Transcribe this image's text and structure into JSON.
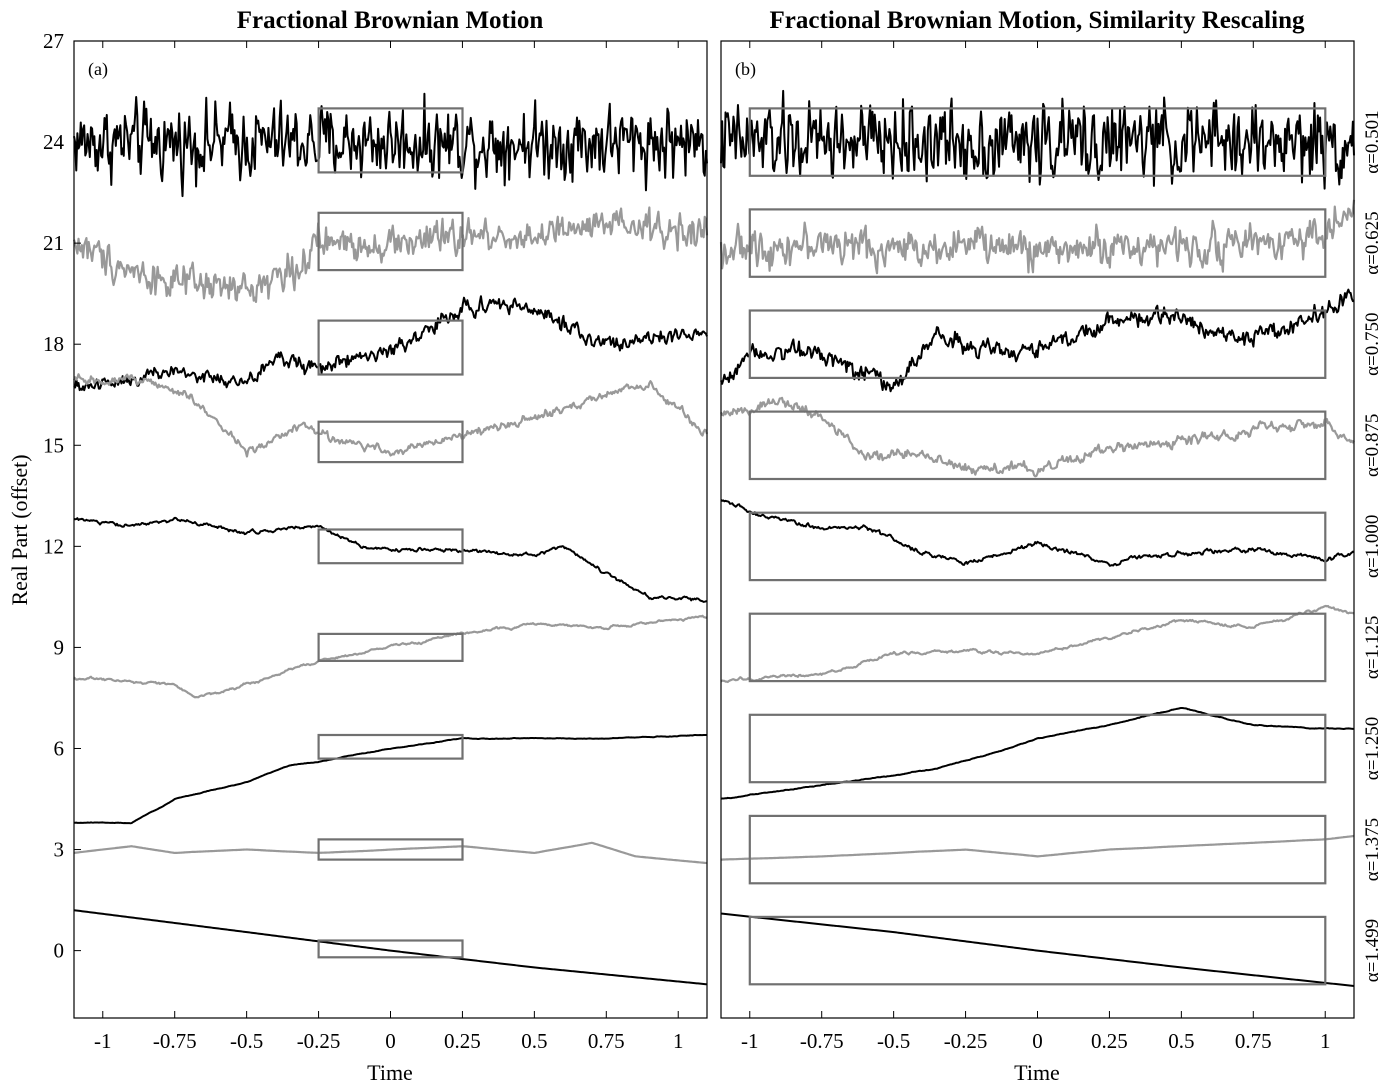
{
  "figure": {
    "ylabel": "Real Part (offset)",
    "alpha_labels": [
      "α=0.501",
      "α=0.625",
      "α=0.750",
      "α=0.875",
      "α=1.000",
      "α=1.125",
      "α=1.250",
      "α=1.375",
      "α=1.499"
    ]
  },
  "chart_data": [
    {
      "type": "line",
      "panel": "(a)",
      "title": "Fractional Brownian Motion",
      "xlabel": "Time",
      "ylabel": "Real Part (offset)",
      "xlim": [
        -1.1,
        1.1
      ],
      "ylim": [
        -2,
        27
      ],
      "xticks": [
        -1,
        -0.75,
        -0.5,
        -0.25,
        0,
        0.25,
        0.5,
        0.75,
        1
      ],
      "xtick_labels": [
        "-1",
        "-0.75",
        "-0.5",
        "-0.25",
        "0",
        "0.25",
        "0.5",
        "0.75",
        "1"
      ],
      "yticks": [
        0,
        3,
        6,
        9,
        12,
        15,
        18,
        21,
        24,
        27
      ],
      "ytick_labels": [
        "0",
        "3",
        "6",
        "9",
        "12",
        "15",
        "18",
        "21",
        "24",
        "27"
      ],
      "grid": false,
      "series": [
        {
          "alpha": 0.501,
          "color": "#000000",
          "x": [
            -1.1,
            -0.75,
            -0.5,
            -0.25,
            0,
            0.25,
            0.5,
            0.75,
            1.1
          ],
          "y": [
            24.0,
            24.0,
            24.0,
            24.0,
            24.0,
            24.0,
            24.0,
            24.0,
            24.0
          ],
          "noise": 0.75
        },
        {
          "alpha": 0.625,
          "color": "#999999",
          "x": [
            -1.1,
            -0.9,
            -0.75,
            -0.5,
            -0.3,
            -0.25,
            0,
            0.25,
            0.5,
            0.75,
            1.1
          ],
          "y": [
            21.0,
            20.2,
            19.8,
            19.6,
            20.4,
            21.0,
            21.0,
            21.2,
            21.2,
            21.5,
            21.3
          ],
          "noise": 0.4
        },
        {
          "alpha": 0.75,
          "color": "#000000",
          "x": [
            -1.1,
            -0.9,
            -0.75,
            -0.5,
            -0.4,
            -0.25,
            0,
            0.15,
            0.25,
            0.4,
            0.5,
            0.75,
            1.1
          ],
          "y": [
            16.7,
            17.0,
            17.2,
            16.8,
            17.6,
            17.3,
            17.8,
            18.5,
            19.1,
            19.2,
            19.0,
            18.0,
            18.3
          ],
          "noise": 0.22
        },
        {
          "alpha": 0.875,
          "color": "#999999",
          "x": [
            -1.1,
            -0.9,
            -0.7,
            -0.55,
            -0.5,
            -0.3,
            -0.2,
            0,
            0.25,
            0.5,
            0.75,
            0.9,
            1.1
          ],
          "y": [
            16.9,
            17.0,
            16.5,
            15.2,
            14.8,
            15.6,
            15.2,
            14.8,
            15.3,
            15.8,
            16.5,
            16.8,
            15.3
          ],
          "noise": 0.14
        },
        {
          "alpha": 1.0,
          "color": "#000000",
          "x": [
            -1.1,
            -0.9,
            -0.75,
            -0.5,
            -0.25,
            -0.1,
            0,
            0.25,
            0.5,
            0.6,
            0.75,
            0.9,
            1.1
          ],
          "y": [
            12.8,
            12.6,
            12.8,
            12.4,
            12.6,
            12.0,
            11.9,
            11.9,
            11.7,
            12.0,
            11.2,
            10.5,
            10.4
          ],
          "noise": 0.08
        },
        {
          "alpha": 1.125,
          "color": "#999999",
          "x": [
            -1.1,
            -0.75,
            -0.68,
            -0.5,
            -0.25,
            0,
            0.25,
            0.5,
            0.75,
            1.1
          ],
          "y": [
            8.1,
            7.9,
            7.5,
            7.9,
            8.6,
            9.0,
            9.4,
            9.7,
            9.6,
            9.9
          ],
          "noise": 0.05
        },
        {
          "alpha": 1.25,
          "color": "#000000",
          "x": [
            -1.1,
            -0.9,
            -0.75,
            -0.5,
            -0.35,
            -0.25,
            0,
            0.25,
            0.5,
            0.75,
            1.1
          ],
          "y": [
            3.8,
            3.8,
            4.5,
            5.0,
            5.5,
            5.6,
            6.0,
            6.3,
            6.3,
            6.3,
            6.4
          ],
          "noise": 0.03
        },
        {
          "alpha": 1.375,
          "color": "#999999",
          "x": [
            -1.1,
            -0.9,
            -0.75,
            -0.5,
            -0.25,
            0,
            0.25,
            0.5,
            0.7,
            0.85,
            1.1
          ],
          "y": [
            2.9,
            3.1,
            2.9,
            3.0,
            2.9,
            3.0,
            3.1,
            2.9,
            3.2,
            2.8,
            2.6
          ],
          "noise": 0.02
        },
        {
          "alpha": 1.499,
          "color": "#000000",
          "x": [
            -1.1,
            -0.5,
            0,
            0.5,
            1.1
          ],
          "y": [
            1.2,
            0.55,
            0.0,
            -0.5,
            -1.0
          ],
          "noise": 0.0
        }
      ],
      "boxes": [
        {
          "x": [
            -0.25,
            0.25
          ],
          "y": [
            23.1,
            25.0
          ]
        },
        {
          "x": [
            -0.25,
            0.25
          ],
          "y": [
            20.2,
            21.9
          ]
        },
        {
          "x": [
            -0.25,
            0.25
          ],
          "y": [
            17.1,
            18.7
          ]
        },
        {
          "x": [
            -0.25,
            0.25
          ],
          "y": [
            14.5,
            15.7
          ]
        },
        {
          "x": [
            -0.25,
            0.25
          ],
          "y": [
            11.5,
            12.5
          ]
        },
        {
          "x": [
            -0.25,
            0.25
          ],
          "y": [
            8.6,
            9.4
          ]
        },
        {
          "x": [
            -0.25,
            0.25
          ],
          "y": [
            5.7,
            6.4
          ]
        },
        {
          "x": [
            -0.25,
            0.25
          ],
          "y": [
            2.7,
            3.3
          ]
        },
        {
          "x": [
            -0.25,
            0.25
          ],
          "y": [
            -0.2,
            0.3
          ]
        }
      ]
    },
    {
      "type": "line",
      "panel": "(b)",
      "title": "Fractional Brownian Motion, Similarity Rescaling",
      "xlabel": "Time",
      "xlim": [
        -1.1,
        1.1
      ],
      "ylim": [
        -2,
        27
      ],
      "xticks": [
        -1,
        -0.75,
        -0.5,
        -0.25,
        0,
        0.25,
        0.5,
        0.75,
        1
      ],
      "xtick_labels": [
        "-1",
        "-0.75",
        "-0.5",
        "-0.25",
        "0",
        "0.25",
        "0.5",
        "0.75",
        "1"
      ],
      "grid": false,
      "series": [
        {
          "alpha": 0.501,
          "color": "#000000",
          "x": [
            -1.1,
            -0.5,
            0,
            0.5,
            1.1
          ],
          "y": [
            24.0,
            24.0,
            24.0,
            24.0,
            24.0
          ],
          "noise": 0.8
        },
        {
          "alpha": 0.625,
          "color": "#999999",
          "x": [
            -1.1,
            -0.75,
            -0.5,
            -0.25,
            0,
            0.25,
            0.5,
            0.75,
            1.0,
            1.1
          ],
          "y": [
            20.8,
            21.0,
            20.8,
            21.0,
            20.8,
            20.9,
            20.9,
            21.0,
            21.3,
            22.0
          ],
          "noise": 0.42
        },
        {
          "alpha": 0.75,
          "color": "#000000",
          "x": [
            -1.1,
            -1.0,
            -0.75,
            -0.5,
            -0.35,
            -0.2,
            0,
            0.25,
            0.5,
            0.75,
            0.9,
            1.1
          ],
          "y": [
            16.8,
            17.8,
            17.8,
            16.7,
            18.3,
            17.8,
            17.8,
            18.7,
            18.8,
            18.1,
            18.6,
            19.4
          ],
          "noise": 0.25
        },
        {
          "alpha": 0.875,
          "color": "#999999",
          "x": [
            -1.1,
            -0.9,
            -0.75,
            -0.6,
            -0.4,
            -0.25,
            0,
            0.25,
            0.5,
            0.75,
            1.0,
            1.1
          ],
          "y": [
            15.9,
            16.3,
            15.8,
            14.7,
            14.7,
            14.3,
            14.3,
            14.9,
            15.1,
            15.5,
            15.7,
            15.0
          ],
          "noise": 0.18
        },
        {
          "alpha": 1.0,
          "color": "#000000",
          "x": [
            -1.1,
            -1.0,
            -0.75,
            -0.6,
            -0.4,
            -0.25,
            0,
            0.25,
            0.5,
            0.75,
            1.0,
            1.1
          ],
          "y": [
            13.4,
            13.0,
            12.5,
            12.6,
            11.8,
            11.5,
            12.1,
            11.5,
            11.8,
            11.9,
            11.6,
            11.8
          ],
          "noise": 0.1
        },
        {
          "alpha": 1.125,
          "color": "#999999",
          "x": [
            -1.1,
            -0.75,
            -0.5,
            -0.25,
            0,
            0.25,
            0.5,
            0.75,
            1.0,
            1.1
          ],
          "y": [
            8.0,
            8.2,
            8.8,
            8.9,
            8.8,
            9.3,
            9.8,
            9.6,
            10.2,
            10.0
          ],
          "noise": 0.06
        },
        {
          "alpha": 1.25,
          "color": "#000000",
          "x": [
            -1.1,
            -0.75,
            -0.5,
            -0.35,
            -0.1,
            0,
            0.25,
            0.5,
            0.75,
            1.0,
            1.1
          ],
          "y": [
            4.5,
            4.9,
            5.2,
            5.4,
            6.0,
            6.3,
            6.7,
            7.2,
            6.7,
            6.6,
            6.6
          ],
          "noise": 0.04
        },
        {
          "alpha": 1.375,
          "color": "#999999",
          "x": [
            -1.1,
            -0.75,
            -0.5,
            -0.25,
            0,
            0.25,
            0.5,
            0.75,
            1.0,
            1.1
          ],
          "y": [
            2.7,
            2.8,
            2.9,
            3.0,
            2.8,
            3.0,
            3.1,
            3.2,
            3.3,
            3.4
          ],
          "noise": 0.02
        },
        {
          "alpha": 1.499,
          "color": "#000000",
          "x": [
            -1.1,
            -0.5,
            0,
            0.5,
            1.1
          ],
          "y": [
            1.1,
            0.55,
            0.0,
            -0.5,
            -1.05
          ],
          "noise": 0.0
        }
      ],
      "boxes": [
        {
          "x": [
            -1.0,
            1.0
          ],
          "y": [
            23.0,
            25.0
          ]
        },
        {
          "x": [
            -1.0,
            1.0
          ],
          "y": [
            20.0,
            22.0
          ]
        },
        {
          "x": [
            -1.0,
            1.0
          ],
          "y": [
            17.0,
            19.0
          ]
        },
        {
          "x": [
            -1.0,
            1.0
          ],
          "y": [
            14.0,
            16.0
          ]
        },
        {
          "x": [
            -1.0,
            1.0
          ],
          "y": [
            11.0,
            13.0
          ]
        },
        {
          "x": [
            -1.0,
            1.0
          ],
          "y": [
            8.0,
            10.0
          ]
        },
        {
          "x": [
            -1.0,
            1.0
          ],
          "y": [
            5.0,
            7.0
          ]
        },
        {
          "x": [
            -1.0,
            1.0
          ],
          "y": [
            2.0,
            4.0
          ]
        },
        {
          "x": [
            -1.0,
            1.0
          ],
          "y": [
            -1.0,
            1.0
          ]
        }
      ]
    }
  ]
}
